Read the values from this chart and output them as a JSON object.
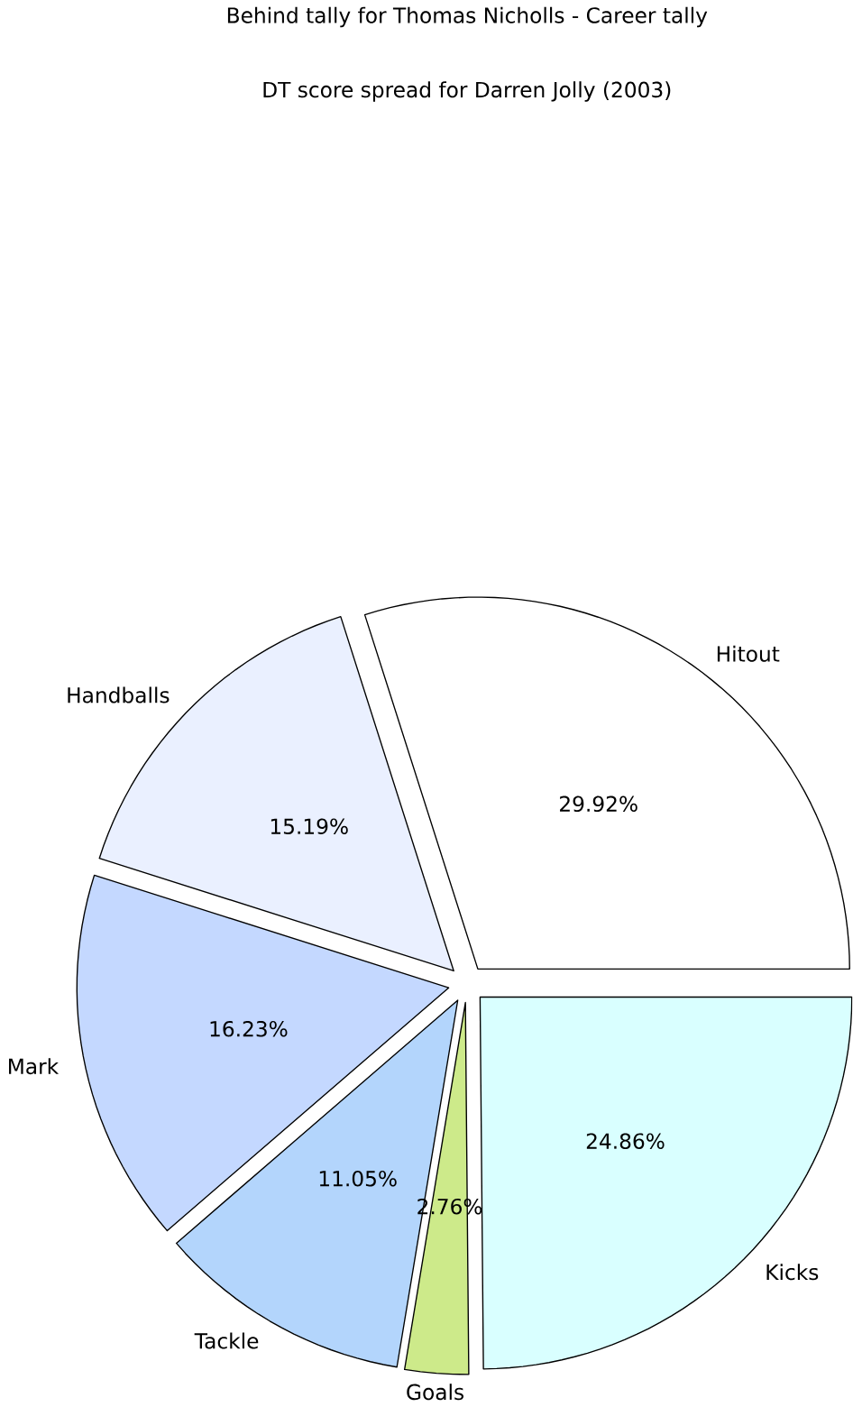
{
  "chart_data": {
    "type": "pie",
    "title": "Behind tally for Thomas Nicholls - Career tally",
    "subtitle": "DT score spread for Darren Jolly (2003)",
    "categories": [
      "Hitout",
      "Handballs",
      "Mark",
      "Tackle",
      "Goals",
      "Kicks"
    ],
    "values": [
      29.92,
      15.19,
      16.23,
      11.05,
      2.76,
      24.86
    ],
    "value_labels": [
      "29.92%",
      "15.19%",
      "16.23%",
      "11.05%",
      "2.76%",
      "24.86%"
    ],
    "colors": [
      "#ffffff",
      "#eaf0ff",
      "#c4d8ff",
      "#b3d5fc",
      "#cdea8a",
      "#d9ffff"
    ]
  }
}
